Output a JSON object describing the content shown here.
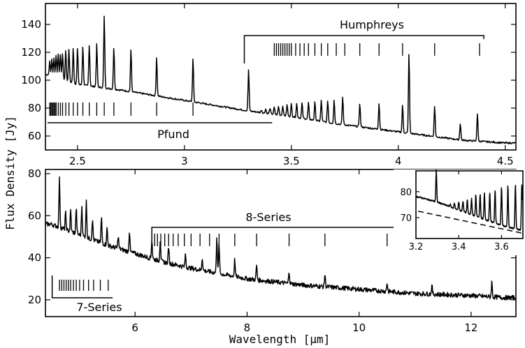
{
  "chart_data": [
    {
      "type": "line",
      "panel": "top",
      "xlim": [
        2.35,
        4.55
      ],
      "ylim": [
        50,
        155
      ],
      "xticks": [
        2.5,
        3,
        3.5,
        4,
        4.5
      ],
      "xticklabels": [
        "2.5",
        "3",
        "3.5",
        "4",
        "4.5"
      ],
      "yticks": [
        60,
        80,
        100,
        120,
        140
      ],
      "yticklabels": [
        "60",
        "80",
        "100",
        "120",
        "140"
      ],
      "continuum": [
        [
          2.36,
          104
        ],
        [
          2.5,
          97
        ],
        [
          2.7,
          93
        ],
        [
          2.9,
          88
        ],
        [
          3.1,
          83
        ],
        [
          3.3,
          78
        ],
        [
          3.5,
          74
        ],
        [
          3.7,
          69
        ],
        [
          3.9,
          65
        ],
        [
          4.1,
          61
        ],
        [
          4.3,
          57
        ],
        [
          4.5,
          55
        ]
      ],
      "lines": [
        [
          2.37,
          10
        ],
        [
          2.38,
          12
        ],
        [
          2.39,
          14
        ],
        [
          2.4,
          16
        ],
        [
          2.41,
          17
        ],
        [
          2.42,
          18
        ],
        [
          2.43,
          19
        ],
        [
          2.445,
          22
        ],
        [
          2.46,
          23
        ],
        [
          2.48,
          25
        ],
        [
          2.5,
          26
        ],
        [
          2.525,
          28
        ],
        [
          2.555,
          30
        ],
        [
          2.59,
          31
        ],
        [
          2.625,
          52
        ],
        [
          2.67,
          30
        ],
        [
          2.75,
          30
        ],
        [
          2.87,
          28
        ],
        [
          3.04,
          31
        ],
        [
          3.3,
          30
        ],
        [
          3.36,
          2
        ],
        [
          3.38,
          3
        ],
        [
          3.4,
          4
        ],
        [
          3.42,
          5
        ],
        [
          3.44,
          6
        ],
        [
          3.46,
          7
        ],
        [
          3.48,
          8
        ],
        [
          3.5,
          9
        ],
        [
          3.525,
          10
        ],
        [
          3.55,
          11
        ],
        [
          3.58,
          12
        ],
        [
          3.61,
          13
        ],
        [
          3.64,
          15
        ],
        [
          3.67,
          16
        ],
        [
          3.7,
          17
        ],
        [
          3.74,
          20
        ],
        [
          3.82,
          17
        ],
        [
          3.91,
          19
        ],
        [
          4.02,
          20
        ],
        [
          4.05,
          58
        ],
        [
          4.17,
          22
        ],
        [
          4.29,
          12
        ],
        [
          4.37,
          20
        ]
      ],
      "series_labels": [
        {
          "text": "Pfund"
        },
        {
          "text": "Humphreys"
        }
      ],
      "pfund_marks": [
        2.37,
        2.375,
        2.38,
        2.385,
        2.39,
        2.395,
        2.4,
        2.41,
        2.42,
        2.43,
        2.445,
        2.46,
        2.48,
        2.5,
        2.525,
        2.555,
        2.59,
        2.625,
        2.67,
        2.75,
        2.87,
        3.04
      ],
      "pfund_bracket": [
        2.36,
        3.41
      ],
      "humphreys_marks": [
        3.42,
        3.43,
        3.44,
        3.45,
        3.46,
        3.47,
        3.48,
        3.49,
        3.5,
        3.52,
        3.54,
        3.56,
        3.58,
        3.61,
        3.64,
        3.67,
        3.71,
        3.75,
        3.82,
        3.91,
        4.02,
        4.17,
        4.38
      ],
      "humphreys_bracket": [
        3.28,
        4.4
      ]
    },
    {
      "type": "line",
      "panel": "bottom",
      "xlim": [
        4.4,
        12.8
      ],
      "ylim": [
        12,
        82
      ],
      "xticks": [
        6,
        8,
        10,
        12
      ],
      "xticklabels": [
        "6",
        "8",
        "10",
        "12"
      ],
      "yticks": [
        20,
        40,
        60,
        80
      ],
      "yticklabels": [
        "20",
        "40",
        "60",
        "80"
      ],
      "xlabel": "Wavelength [μm]",
      "continuum": [
        [
          4.5,
          56
        ],
        [
          5.0,
          51
        ],
        [
          5.5,
          46
        ],
        [
          6.0,
          42
        ],
        [
          6.5,
          38
        ],
        [
          7.0,
          35
        ],
        [
          8.0,
          30
        ],
        [
          9.0,
          27
        ],
        [
          10.0,
          25
        ],
        [
          11.0,
          23
        ],
        [
          12.0,
          22
        ],
        [
          12.6,
          21
        ]
      ],
      "lines": [
        [
          4.65,
          23
        ],
        [
          4.76,
          8
        ],
        [
          4.85,
          10
        ],
        [
          4.95,
          12
        ],
        [
          5.05,
          14
        ],
        [
          5.13,
          17
        ],
        [
          5.24,
          10
        ],
        [
          5.4,
          12
        ],
        [
          5.5,
          8
        ],
        [
          5.7,
          6
        ],
        [
          5.9,
          10
        ],
        [
          6.3,
          9
        ],
        [
          6.45,
          10
        ],
        [
          6.6,
          8
        ],
        [
          6.9,
          6
        ],
        [
          7.2,
          6
        ],
        [
          7.46,
          18
        ],
        [
          7.5,
          14
        ],
        [
          7.78,
          8
        ],
        [
          8.17,
          7
        ],
        [
          8.75,
          6
        ],
        [
          9.39,
          6
        ],
        [
          10.5,
          4
        ],
        [
          11.3,
          4
        ],
        [
          12.37,
          7
        ]
      ],
      "series_labels": [
        {
          "text": "7-Series"
        },
        {
          "text": "8-Series"
        }
      ],
      "seven_marks": [
        4.65,
        4.69,
        4.73,
        4.77,
        4.81,
        4.85,
        4.9,
        4.95,
        5.01,
        5.08,
        5.17,
        5.26,
        5.38,
        5.52
      ],
      "seven_bracket": [
        4.52,
        5.6
      ],
      "eight_marks": [
        6.3,
        6.35,
        6.4,
        6.46,
        6.53,
        6.6,
        6.68,
        6.77,
        6.88,
        7.0,
        7.16,
        7.33,
        7.5,
        7.78,
        8.17,
        8.75,
        9.39,
        10.5
      ],
      "eight_bracket": [
        6.3,
        10.65
      ]
    },
    {
      "type": "line",
      "panel": "inset",
      "xlim": [
        3.2,
        3.7
      ],
      "ylim": [
        62,
        88
      ],
      "xticks": [
        3.2,
        3.4,
        3.6
      ],
      "xticklabels": [
        "3.2",
        "3.4",
        "3.6"
      ],
      "yticks": [
        70,
        80
      ],
      "yticklabels": [
        "70",
        "80"
      ],
      "dashed_continuum": [
        [
          3.21,
          72.5
        ],
        [
          3.7,
          64
        ]
      ],
      "continuum": [
        [
          3.21,
          78
        ],
        [
          3.3,
          76
        ],
        [
          3.4,
          73
        ],
        [
          3.5,
          70
        ],
        [
          3.6,
          67
        ],
        [
          3.7,
          65
        ]
      ],
      "lines": [
        [
          3.295,
          12
        ],
        [
          3.36,
          1
        ],
        [
          3.38,
          2
        ],
        [
          3.4,
          3
        ],
        [
          3.42,
          4
        ],
        [
          3.44,
          5
        ],
        [
          3.46,
          6
        ],
        [
          3.48,
          8
        ],
        [
          3.5,
          9
        ],
        [
          3.52,
          10
        ],
        [
          3.545,
          11
        ],
        [
          3.57,
          13
        ],
        [
          3.6,
          15
        ],
        [
          3.63,
          16
        ],
        [
          3.665,
          17
        ],
        [
          3.695,
          18
        ]
      ]
    }
  ],
  "ylabel": "Flux Density [Jy]"
}
